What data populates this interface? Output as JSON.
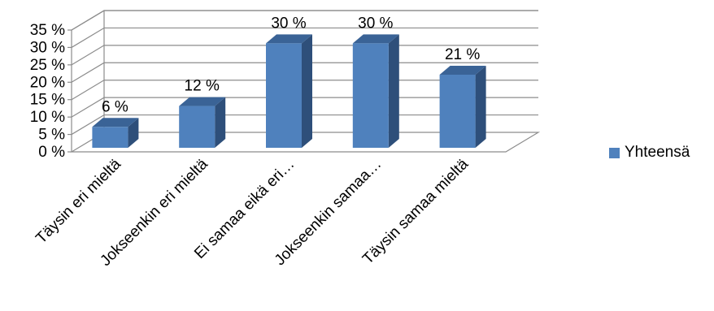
{
  "chart_data": {
    "type": "bar",
    "categories": [
      "Täysin eri mieltä",
      "Jokseenkin eri mieltä",
      "Ei samaa eikä eri…",
      "Jokseenkin samaa…",
      "Täysin samaa mieltä"
    ],
    "series": [
      {
        "name": "Yhteensä",
        "values": [
          6,
          12,
          30,
          30,
          21
        ]
      }
    ],
    "data_labels": [
      "6 %",
      "12 %",
      "30 %",
      "30 %",
      "21 %"
    ],
    "yticks": [
      "0 %",
      "5 %",
      "10 %",
      "15 %",
      "20 %",
      "25 %",
      "30 %",
      "35 %"
    ],
    "ylim": [
      0,
      35
    ],
    "grid": true,
    "legend_position": "right",
    "bar_color": "#4F81BD",
    "bar_side_color": "#2E4F7A",
    "bar_top_color": "#3A6396"
  }
}
